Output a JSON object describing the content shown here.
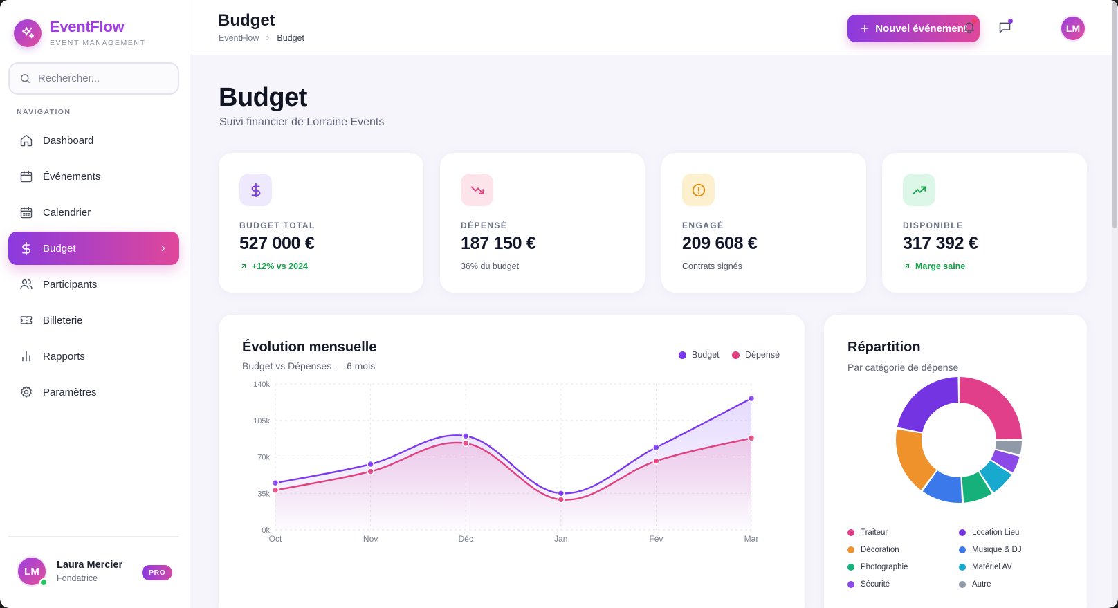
{
  "brand": {
    "name": "EventFlow",
    "tagline": "EVENT MANAGEMENT"
  },
  "search": {
    "placeholder": "Rechercher..."
  },
  "nav": {
    "section_label": "NAVIGATION",
    "items": [
      {
        "label": "Dashboard",
        "icon": "home-icon"
      },
      {
        "label": "Événements",
        "icon": "calendar-icon"
      },
      {
        "label": "Calendrier",
        "icon": "calendar-grid-icon"
      },
      {
        "label": "Budget",
        "icon": "dollar-icon",
        "active": true
      },
      {
        "label": "Participants",
        "icon": "users-icon"
      },
      {
        "label": "Billeterie",
        "icon": "ticket-icon"
      },
      {
        "label": "Rapports",
        "icon": "bar-chart-icon"
      },
      {
        "label": "Paramètres",
        "icon": "gear-icon"
      }
    ]
  },
  "user": {
    "initials": "LM",
    "name": "Laura Mercier",
    "role": "Fondatrice",
    "badge": "PRO"
  },
  "topbar": {
    "title": "Budget",
    "breadcrumb": [
      "EventFlow",
      "Budget"
    ],
    "new_event_label": "Nouvel événement",
    "avatar_initials": "LM"
  },
  "page": {
    "title": "Budget",
    "subtitle": "Suivi financier de Lorraine Events"
  },
  "stats": [
    {
      "label": "BUDGET TOTAL",
      "value": "527 000 €",
      "foot": "+12% vs 2024",
      "foot_trend": "up",
      "icon": "dollar-icon",
      "icon_color": "#7c3aed",
      "icon_bg": "#efe9fd"
    },
    {
      "label": "DÉPENSÉ",
      "value": "187 150 €",
      "foot": "36% du budget",
      "foot_trend": "none",
      "icon": "trending-down-icon",
      "icon_color": "#e23f7e",
      "icon_bg": "#fde3ea"
    },
    {
      "label": "ENGAGÉ",
      "value": "209 608 €",
      "foot": "Contrats signés",
      "foot_trend": "none",
      "icon": "alert-circle-icon",
      "icon_color": "#e08a12",
      "icon_bg": "#fdf0cf"
    },
    {
      "label": "DISPONIBLE",
      "value": "317 392 €",
      "foot": "Marge saine",
      "foot_trend": "up",
      "icon": "trending-up-icon",
      "icon_color": "#16a34a",
      "icon_bg": "#dcf7e7"
    }
  ],
  "chart_data": [
    {
      "type": "line",
      "title": "Évolution mensuelle",
      "subtitle": "Budget vs Dépenses — 6 mois",
      "categories": [
        "Oct",
        "Nov",
        "Déc",
        "Jan",
        "Fév",
        "Mar"
      ],
      "y_ticks": [
        "0k",
        "35k",
        "70k",
        "105k",
        "140k"
      ],
      "ylim": [
        0,
        140000
      ],
      "grid": true,
      "legend_position": "top-right",
      "series": [
        {
          "name": "Budget",
          "color": "#7c3aed",
          "values": [
            45000,
            63000,
            90000,
            35000,
            79000,
            126000
          ]
        },
        {
          "name": "Dépensé",
          "color": "#e23f7e",
          "values": [
            38000,
            56000,
            83000,
            29000,
            66000,
            88000
          ]
        }
      ]
    },
    {
      "type": "pie",
      "title": "Répartition",
      "subtitle": "Par catégorie de dépense",
      "donut": true,
      "slices": [
        {
          "name": "Traiteur",
          "value": 25,
          "color": "#e23f8a"
        },
        {
          "name": "Autre",
          "value": 4,
          "color": "#8f99a8"
        },
        {
          "name": "Sécurité",
          "value": 5,
          "color": "#8b4ae8"
        },
        {
          "name": "Matériel AV",
          "value": 7,
          "color": "#18a9cf"
        },
        {
          "name": "Photographie",
          "value": 8,
          "color": "#16b07a"
        },
        {
          "name": "Musique & DJ",
          "value": 11,
          "color": "#3b78ea"
        },
        {
          "name": "Décoration",
          "value": 18,
          "color": "#f0922b"
        },
        {
          "name": "Location Lieu",
          "value": 22,
          "color": "#7434e2"
        }
      ],
      "legend": [
        {
          "name": "Traiteur",
          "color": "#e23f8a"
        },
        {
          "name": "Location Lieu",
          "color": "#7434e2"
        },
        {
          "name": "Décoration",
          "color": "#f0922b"
        },
        {
          "name": "Musique & DJ",
          "color": "#3b78ea"
        },
        {
          "name": "Photographie",
          "color": "#16b07a"
        },
        {
          "name": "Matériel AV",
          "color": "#18a9cf"
        },
        {
          "name": "Sécurité",
          "color": "#8b4ae8"
        },
        {
          "name": "Autre",
          "color": "#8f99a8"
        }
      ]
    }
  ]
}
